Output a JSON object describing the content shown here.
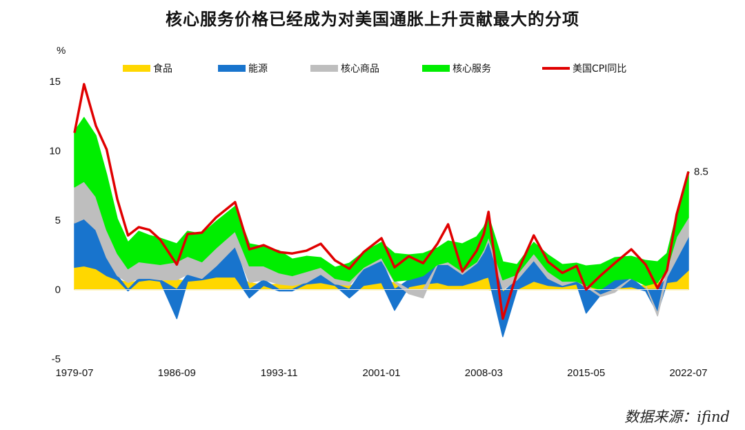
{
  "title": "核心服务价格已经成为对美国通胀上升贡献最大的分项",
  "source": "数据来源：ifind",
  "colors": {
    "food": "#FFD700",
    "energy": "#1874CD",
    "core_goods": "#BEBEBE",
    "core_services": "#00EE00",
    "cpi": "#E00000"
  },
  "chart_data": {
    "type": "area",
    "title": "",
    "ylabel": "%",
    "xlabel": "",
    "ylim": [
      -5,
      15
    ],
    "yticks": [
      "15",
      "10",
      "5",
      "0",
      "-5"
    ],
    "xticks": [
      "1979-07",
      "1986-09",
      "1993-11",
      "2001-01",
      "2008-03",
      "2015-05",
      "2022-07"
    ],
    "legend_position": "top",
    "legend": [
      "食品",
      "能源",
      "核心商品",
      "核心服务",
      "美国CPI同比"
    ],
    "annotation": "8.5",
    "x": [
      "1979-07",
      "1980-03",
      "1981-01",
      "1981-10",
      "1982-07",
      "1983-04",
      "1984-01",
      "1984-10",
      "1985-07",
      "1986-09",
      "1987-06",
      "1988-06",
      "1989-06",
      "1990-10",
      "1991-10",
      "1992-10",
      "1993-11",
      "1994-10",
      "1995-10",
      "1996-10",
      "1997-10",
      "1998-10",
      "1999-10",
      "2001-01",
      "2001-12",
      "2002-12",
      "2003-12",
      "2004-12",
      "2005-09",
      "2006-09",
      "2007-09",
      "2008-03",
      "2008-07",
      "2009-07",
      "2010-07",
      "2011-09",
      "2012-09",
      "2013-09",
      "2014-09",
      "2015-05",
      "2016-05",
      "2017-05",
      "2018-07",
      "2019-07",
      "2020-05",
      "2021-01",
      "2021-09",
      "2022-07"
    ],
    "series": [
      {
        "name": "食品",
        "values": [
          1.6,
          1.7,
          1.5,
          1.0,
          0.7,
          0.5,
          0.6,
          0.7,
          0.6,
          0.7,
          0.6,
          0.7,
          0.9,
          0.9,
          0.5,
          0.3,
          0.4,
          0.3,
          0.4,
          0.5,
          0.3,
          0.3,
          0.3,
          0.5,
          0.5,
          0.2,
          0.4,
          0.5,
          0.3,
          0.3,
          0.6,
          0.8,
          0.9,
          -0.2,
          0.0,
          0.6,
          0.3,
          0.2,
          0.4,
          0.2,
          -0.1,
          0.1,
          0.2,
          0.3,
          0.5,
          0.5,
          0.6,
          1.4
        ]
      },
      {
        "name": "能源",
        "values": [
          3.2,
          3.4,
          2.8,
          1.3,
          0.3,
          -0.1,
          0.2,
          0.1,
          0.1,
          -2.1,
          0.5,
          0.1,
          0.8,
          2.2,
          -0.6,
          0.4,
          -0.1,
          -0.1,
          0.1,
          0.6,
          0.1,
          -0.6,
          1.2,
          1.6,
          -1.5,
          0.5,
          0.6,
          1.3,
          1.5,
          0.8,
          1.3,
          1.9,
          2.6,
          -3.2,
          0.7,
          1.5,
          0.5,
          0.1,
          0.2,
          -1.7,
          -0.3,
          0.6,
          0.6,
          -0.1,
          -1.7,
          0.4,
          1.6,
          2.4
        ]
      },
      {
        "name": "核心商品",
        "values": [
          2.6,
          2.7,
          2.4,
          2.0,
          1.6,
          1.0,
          1.2,
          1.1,
          1.1,
          1.3,
          1.3,
          1.2,
          1.3,
          1.1,
          1.2,
          1.0,
          0.8,
          0.7,
          0.8,
          0.5,
          0.4,
          0.3,
          0.1,
          0.2,
          0.1,
          -0.3,
          -0.6,
          0.0,
          0.2,
          0.2,
          0.1,
          0.2,
          0.3,
          0.7,
          0.4,
          0.5,
          0.5,
          0.3,
          0.0,
          0.1,
          -0.1,
          -0.2,
          0.0,
          0.0,
          -0.2,
          0.6,
          1.6,
          1.4
        ]
      },
      {
        "name": "核心服务",
        "values": [
          4.0,
          4.6,
          4.4,
          4.0,
          2.5,
          1.9,
          2.2,
          2.0,
          1.9,
          1.3,
          1.8,
          2.0,
          1.9,
          1.8,
          1.6,
          1.4,
          1.6,
          1.2,
          1.1,
          0.7,
          0.8,
          1.3,
          1.1,
          1.1,
          2.0,
          1.8,
          1.6,
          1.2,
          1.5,
          2.0,
          1.8,
          1.6,
          1.5,
          1.3,
          0.7,
          0.8,
          1.2,
          1.2,
          1.3,
          1.4,
          1.8,
          1.6,
          1.6,
          1.8,
          1.5,
          1.1,
          1.6,
          3.3
        ]
      },
      {
        "name": "美国CPI同比",
        "values": [
          11.3,
          14.8,
          11.8,
          10.1,
          6.5,
          3.9,
          4.5,
          4.3,
          3.6,
          1.8,
          4.0,
          4.1,
          5.2,
          6.3,
          2.9,
          3.2,
          2.7,
          2.6,
          2.8,
          3.3,
          2.1,
          1.5,
          2.7,
          3.7,
          1.6,
          2.4,
          1.9,
          3.3,
          4.7,
          1.3,
          2.8,
          4.0,
          5.6,
          -2.1,
          1.2,
          3.9,
          2.0,
          1.2,
          1.7,
          0.0,
          1.0,
          1.9,
          2.9,
          1.8,
          0.1,
          1.4,
          5.4,
          8.5
        ]
      }
    ]
  }
}
